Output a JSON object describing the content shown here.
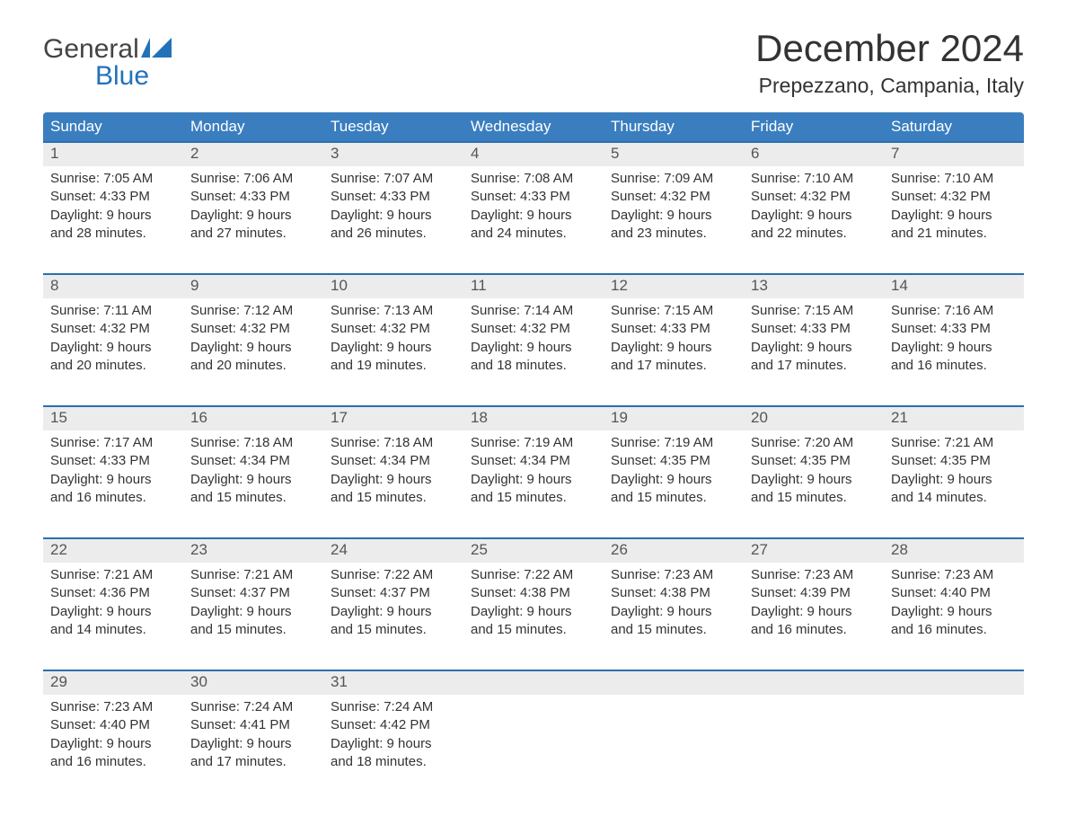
{
  "brand": {
    "word1": "General",
    "word2": "Blue"
  },
  "colors": {
    "brand_blue": "#2372b9",
    "header_bg": "#3a7ebf",
    "week_rule": "#2b6fb0",
    "daynum_bg": "#ececec",
    "text": "#333333",
    "muted_text": "#555555",
    "page_bg": "#ffffff"
  },
  "title": "December 2024",
  "location": "Prepezzano, Campania, Italy",
  "day_headers": [
    "Sunday",
    "Monday",
    "Tuesday",
    "Wednesday",
    "Thursday",
    "Friday",
    "Saturday"
  ],
  "layout": {
    "columns": 7,
    "weeks": 5,
    "header_fontsize_pt": 13,
    "title_fontsize_pt": 32,
    "location_fontsize_pt": 17,
    "body_fontsize_pt": 11
  },
  "weeks": [
    [
      {
        "n": "1",
        "sunrise": "Sunrise: 7:05 AM",
        "sunset": "Sunset: 4:33 PM",
        "d1": "Daylight: 9 hours",
        "d2": "and 28 minutes."
      },
      {
        "n": "2",
        "sunrise": "Sunrise: 7:06 AM",
        "sunset": "Sunset: 4:33 PM",
        "d1": "Daylight: 9 hours",
        "d2": "and 27 minutes."
      },
      {
        "n": "3",
        "sunrise": "Sunrise: 7:07 AM",
        "sunset": "Sunset: 4:33 PM",
        "d1": "Daylight: 9 hours",
        "d2": "and 26 minutes."
      },
      {
        "n": "4",
        "sunrise": "Sunrise: 7:08 AM",
        "sunset": "Sunset: 4:33 PM",
        "d1": "Daylight: 9 hours",
        "d2": "and 24 minutes."
      },
      {
        "n": "5",
        "sunrise": "Sunrise: 7:09 AM",
        "sunset": "Sunset: 4:32 PM",
        "d1": "Daylight: 9 hours",
        "d2": "and 23 minutes."
      },
      {
        "n": "6",
        "sunrise": "Sunrise: 7:10 AM",
        "sunset": "Sunset: 4:32 PM",
        "d1": "Daylight: 9 hours",
        "d2": "and 22 minutes."
      },
      {
        "n": "7",
        "sunrise": "Sunrise: 7:10 AM",
        "sunset": "Sunset: 4:32 PM",
        "d1": "Daylight: 9 hours",
        "d2": "and 21 minutes."
      }
    ],
    [
      {
        "n": "8",
        "sunrise": "Sunrise: 7:11 AM",
        "sunset": "Sunset: 4:32 PM",
        "d1": "Daylight: 9 hours",
        "d2": "and 20 minutes."
      },
      {
        "n": "9",
        "sunrise": "Sunrise: 7:12 AM",
        "sunset": "Sunset: 4:32 PM",
        "d1": "Daylight: 9 hours",
        "d2": "and 20 minutes."
      },
      {
        "n": "10",
        "sunrise": "Sunrise: 7:13 AM",
        "sunset": "Sunset: 4:32 PM",
        "d1": "Daylight: 9 hours",
        "d2": "and 19 minutes."
      },
      {
        "n": "11",
        "sunrise": "Sunrise: 7:14 AM",
        "sunset": "Sunset: 4:32 PM",
        "d1": "Daylight: 9 hours",
        "d2": "and 18 minutes."
      },
      {
        "n": "12",
        "sunrise": "Sunrise: 7:15 AM",
        "sunset": "Sunset: 4:33 PM",
        "d1": "Daylight: 9 hours",
        "d2": "and 17 minutes."
      },
      {
        "n": "13",
        "sunrise": "Sunrise: 7:15 AM",
        "sunset": "Sunset: 4:33 PM",
        "d1": "Daylight: 9 hours",
        "d2": "and 17 minutes."
      },
      {
        "n": "14",
        "sunrise": "Sunrise: 7:16 AM",
        "sunset": "Sunset: 4:33 PM",
        "d1": "Daylight: 9 hours",
        "d2": "and 16 minutes."
      }
    ],
    [
      {
        "n": "15",
        "sunrise": "Sunrise: 7:17 AM",
        "sunset": "Sunset: 4:33 PM",
        "d1": "Daylight: 9 hours",
        "d2": "and 16 minutes."
      },
      {
        "n": "16",
        "sunrise": "Sunrise: 7:18 AM",
        "sunset": "Sunset: 4:34 PM",
        "d1": "Daylight: 9 hours",
        "d2": "and 15 minutes."
      },
      {
        "n": "17",
        "sunrise": "Sunrise: 7:18 AM",
        "sunset": "Sunset: 4:34 PM",
        "d1": "Daylight: 9 hours",
        "d2": "and 15 minutes."
      },
      {
        "n": "18",
        "sunrise": "Sunrise: 7:19 AM",
        "sunset": "Sunset: 4:34 PM",
        "d1": "Daylight: 9 hours",
        "d2": "and 15 minutes."
      },
      {
        "n": "19",
        "sunrise": "Sunrise: 7:19 AM",
        "sunset": "Sunset: 4:35 PM",
        "d1": "Daylight: 9 hours",
        "d2": "and 15 minutes."
      },
      {
        "n": "20",
        "sunrise": "Sunrise: 7:20 AM",
        "sunset": "Sunset: 4:35 PM",
        "d1": "Daylight: 9 hours",
        "d2": "and 15 minutes."
      },
      {
        "n": "21",
        "sunrise": "Sunrise: 7:21 AM",
        "sunset": "Sunset: 4:35 PM",
        "d1": "Daylight: 9 hours",
        "d2": "and 14 minutes."
      }
    ],
    [
      {
        "n": "22",
        "sunrise": "Sunrise: 7:21 AM",
        "sunset": "Sunset: 4:36 PM",
        "d1": "Daylight: 9 hours",
        "d2": "and 14 minutes."
      },
      {
        "n": "23",
        "sunrise": "Sunrise: 7:21 AM",
        "sunset": "Sunset: 4:37 PM",
        "d1": "Daylight: 9 hours",
        "d2": "and 15 minutes."
      },
      {
        "n": "24",
        "sunrise": "Sunrise: 7:22 AM",
        "sunset": "Sunset: 4:37 PM",
        "d1": "Daylight: 9 hours",
        "d2": "and 15 minutes."
      },
      {
        "n": "25",
        "sunrise": "Sunrise: 7:22 AM",
        "sunset": "Sunset: 4:38 PM",
        "d1": "Daylight: 9 hours",
        "d2": "and 15 minutes."
      },
      {
        "n": "26",
        "sunrise": "Sunrise: 7:23 AM",
        "sunset": "Sunset: 4:38 PM",
        "d1": "Daylight: 9 hours",
        "d2": "and 15 minutes."
      },
      {
        "n": "27",
        "sunrise": "Sunrise: 7:23 AM",
        "sunset": "Sunset: 4:39 PM",
        "d1": "Daylight: 9 hours",
        "d2": "and 16 minutes."
      },
      {
        "n": "28",
        "sunrise": "Sunrise: 7:23 AM",
        "sunset": "Sunset: 4:40 PM",
        "d1": "Daylight: 9 hours",
        "d2": "and 16 minutes."
      }
    ],
    [
      {
        "n": "29",
        "sunrise": "Sunrise: 7:23 AM",
        "sunset": "Sunset: 4:40 PM",
        "d1": "Daylight: 9 hours",
        "d2": "and 16 minutes."
      },
      {
        "n": "30",
        "sunrise": "Sunrise: 7:24 AM",
        "sunset": "Sunset: 4:41 PM",
        "d1": "Daylight: 9 hours",
        "d2": "and 17 minutes."
      },
      {
        "n": "31",
        "sunrise": "Sunrise: 7:24 AM",
        "sunset": "Sunset: 4:42 PM",
        "d1": "Daylight: 9 hours",
        "d2": "and 18 minutes."
      },
      null,
      null,
      null,
      null
    ]
  ]
}
